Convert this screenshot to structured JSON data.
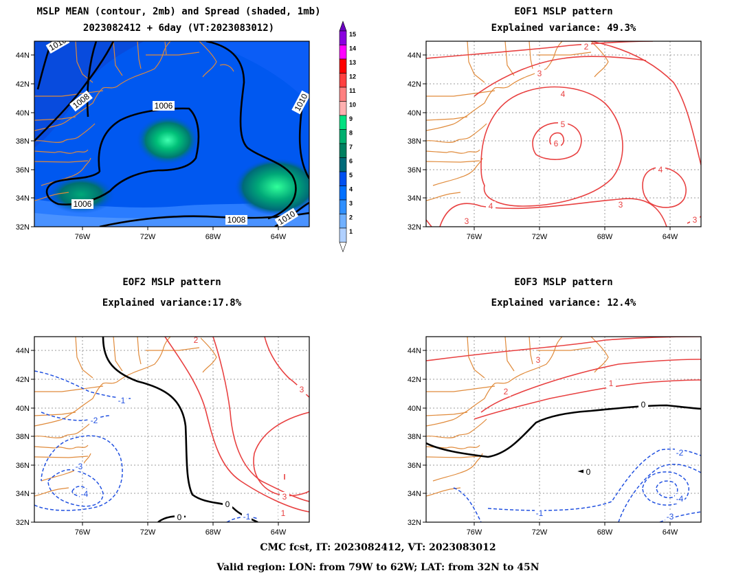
{
  "panel1": {
    "title1": "MSLP MEAN (contour, 2mb) and Spread (shaded, 1mb)",
    "title2": "2023082412 + 6day (VT:2023083012)",
    "contour_labels": [
      "1010",
      "1008",
      "1006",
      "1006",
      "1008",
      "1010",
      "1010"
    ]
  },
  "panel2": {
    "title1": "EOF1 MSLP pattern",
    "title2": "Explained variance: 49.3%",
    "contour_labels": [
      "2",
      "3",
      "4",
      "5",
      "6",
      "4",
      "3",
      "4",
      "3",
      "3"
    ]
  },
  "panel3": {
    "title1": "EOF2 MSLP pattern",
    "title2": "Explained variance:17.8%",
    "contour_labels": [
      "2",
      "3",
      "3",
      "1",
      "0",
      "0",
      "-1",
      "-2",
      "-3",
      "-4",
      "-1"
    ]
  },
  "panel4": {
    "title1": "EOF3 MSLP pattern",
    "title2": "Explained variance: 12.4%",
    "contour_labels": [
      "3",
      "2",
      "1",
      "0",
      "0",
      "-1",
      "-2",
      "-3",
      "-4"
    ]
  },
  "axes": {
    "lat_ticks": [
      "44N",
      "42N",
      "40N",
      "38N",
      "36N",
      "34N",
      "32N"
    ],
    "lon_ticks": [
      "76W",
      "72W",
      "68W",
      "64W"
    ]
  },
  "colorbar": {
    "levels": [
      "15",
      "14",
      "13",
      "12",
      "11",
      "10",
      "9",
      "8",
      "7",
      "6",
      "5",
      "4",
      "3",
      "2",
      "1"
    ],
    "colors": [
      "#8a00e0",
      "#ff00ff",
      "#ff0000",
      "#ff4040",
      "#ff8080",
      "#ffb0b0",
      "#00e080",
      "#00b070",
      "#008060",
      "#006a78",
      "#0050f0",
      "#0070ff",
      "#3090ff",
      "#70b0ff",
      "#b0d0ff"
    ]
  },
  "footer": {
    "line1": "CMC fcst, IT: 2023082412, VT: 2023083012",
    "line2": "Valid region: LON: from 79W to 62W; LAT: from 32N to 45N"
  }
}
